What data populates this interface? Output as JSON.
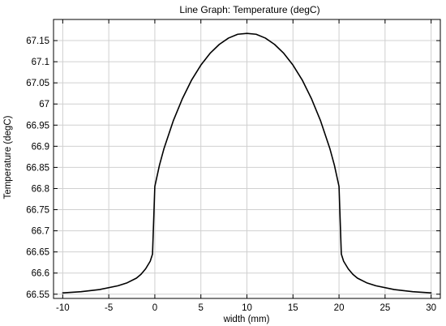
{
  "chart_data": {
    "type": "line",
    "title": "Line Graph: Temperature (degC)",
    "xlabel": "width (mm)",
    "ylabel": "Temperature (degC)",
    "xlim": [
      -11,
      31
    ],
    "ylim": [
      66.54,
      67.2
    ],
    "grid": true,
    "x_ticks": [
      -10,
      -5,
      0,
      5,
      10,
      15,
      20,
      25,
      30
    ],
    "x_tick_labels": [
      "-10",
      "-5",
      "0",
      "5",
      "10",
      "15",
      "20",
      "25",
      "30"
    ],
    "y_ticks": [
      66.55,
      66.6,
      66.65,
      66.7,
      66.75,
      66.8,
      66.85,
      66.9,
      66.95,
      67.0,
      67.05,
      67.1,
      67.15
    ],
    "y_tick_labels": [
      "66.55",
      "66.6",
      "66.65",
      "66.7",
      "66.75",
      "66.8",
      "66.85",
      "66.9",
      "66.95",
      "67",
      "67.05",
      "67.1",
      "67.15"
    ],
    "series": [
      {
        "color": "#000000",
        "x": [
          -10,
          -8,
          -6,
          -4,
          -3,
          -2,
          -1.5,
          -1,
          -0.5,
          -0.25,
          0,
          0.5,
          1,
          2,
          3,
          4,
          5,
          6,
          7,
          8,
          9,
          10,
          11,
          12,
          13,
          14,
          15,
          16,
          17,
          18,
          19,
          19.5,
          20,
          20.25,
          20.5,
          21,
          21.5,
          22,
          23,
          24,
          26,
          28,
          30
        ],
        "y": [
          66.553,
          66.556,
          66.561,
          66.57,
          66.577,
          66.588,
          66.597,
          66.61,
          66.628,
          66.645,
          66.805,
          66.855,
          66.895,
          66.96,
          67.013,
          67.057,
          67.092,
          67.12,
          67.141,
          67.156,
          67.165,
          67.167,
          67.165,
          67.156,
          67.141,
          67.12,
          67.092,
          67.057,
          67.013,
          66.96,
          66.895,
          66.855,
          66.805,
          66.645,
          66.628,
          66.61,
          66.597,
          66.588,
          66.577,
          66.57,
          66.561,
          66.556,
          66.553
        ]
      }
    ]
  }
}
